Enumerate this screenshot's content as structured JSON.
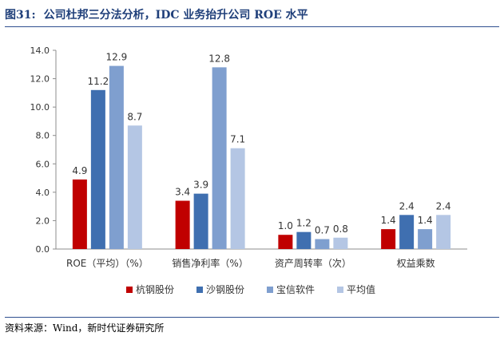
{
  "figure": {
    "number": "图31:",
    "title": "公司杜邦三分法分析，IDC 业务抬升公司 ROE 水平",
    "source": "资料来源：Wind，新时代证券研究所"
  },
  "chart_data": {
    "type": "bar",
    "categories": [
      "ROE（平均）（%）",
      "销售净利率（%）",
      "资产周转率（次）",
      "权益乘数"
    ],
    "series": [
      {
        "name": "杭钢股份",
        "color": "#c00000",
        "values": [
          4.9,
          3.4,
          1.0,
          1.4
        ]
      },
      {
        "name": "沙钢股份",
        "color": "#3f6fb0",
        "values": [
          11.2,
          3.9,
          1.2,
          2.4
        ]
      },
      {
        "name": "宝信软件",
        "color": "#7f9fcf",
        "values": [
          12.9,
          12.8,
          0.7,
          1.4
        ]
      },
      {
        "name": "平均值",
        "color": "#b4c6e4",
        "values": [
          8.7,
          7.1,
          0.8,
          2.4
        ]
      }
    ],
    "data_labels": [
      [
        "4.9",
        "3.4",
        "1.0",
        "1.4"
      ],
      [
        "11.2",
        "3.9",
        "1.2",
        "2.4"
      ],
      [
        "12.9",
        "12.8",
        "0.7",
        "1.4"
      ],
      [
        "8.7",
        "7.1",
        "0.8",
        "2.4"
      ]
    ],
    "yticks": [
      "0.0",
      "2.0",
      "4.0",
      "6.0",
      "8.0",
      "10.0",
      "12.0",
      "14.0"
    ],
    "ylim": [
      0,
      14
    ],
    "grid": false,
    "legend_position": "bottom"
  }
}
